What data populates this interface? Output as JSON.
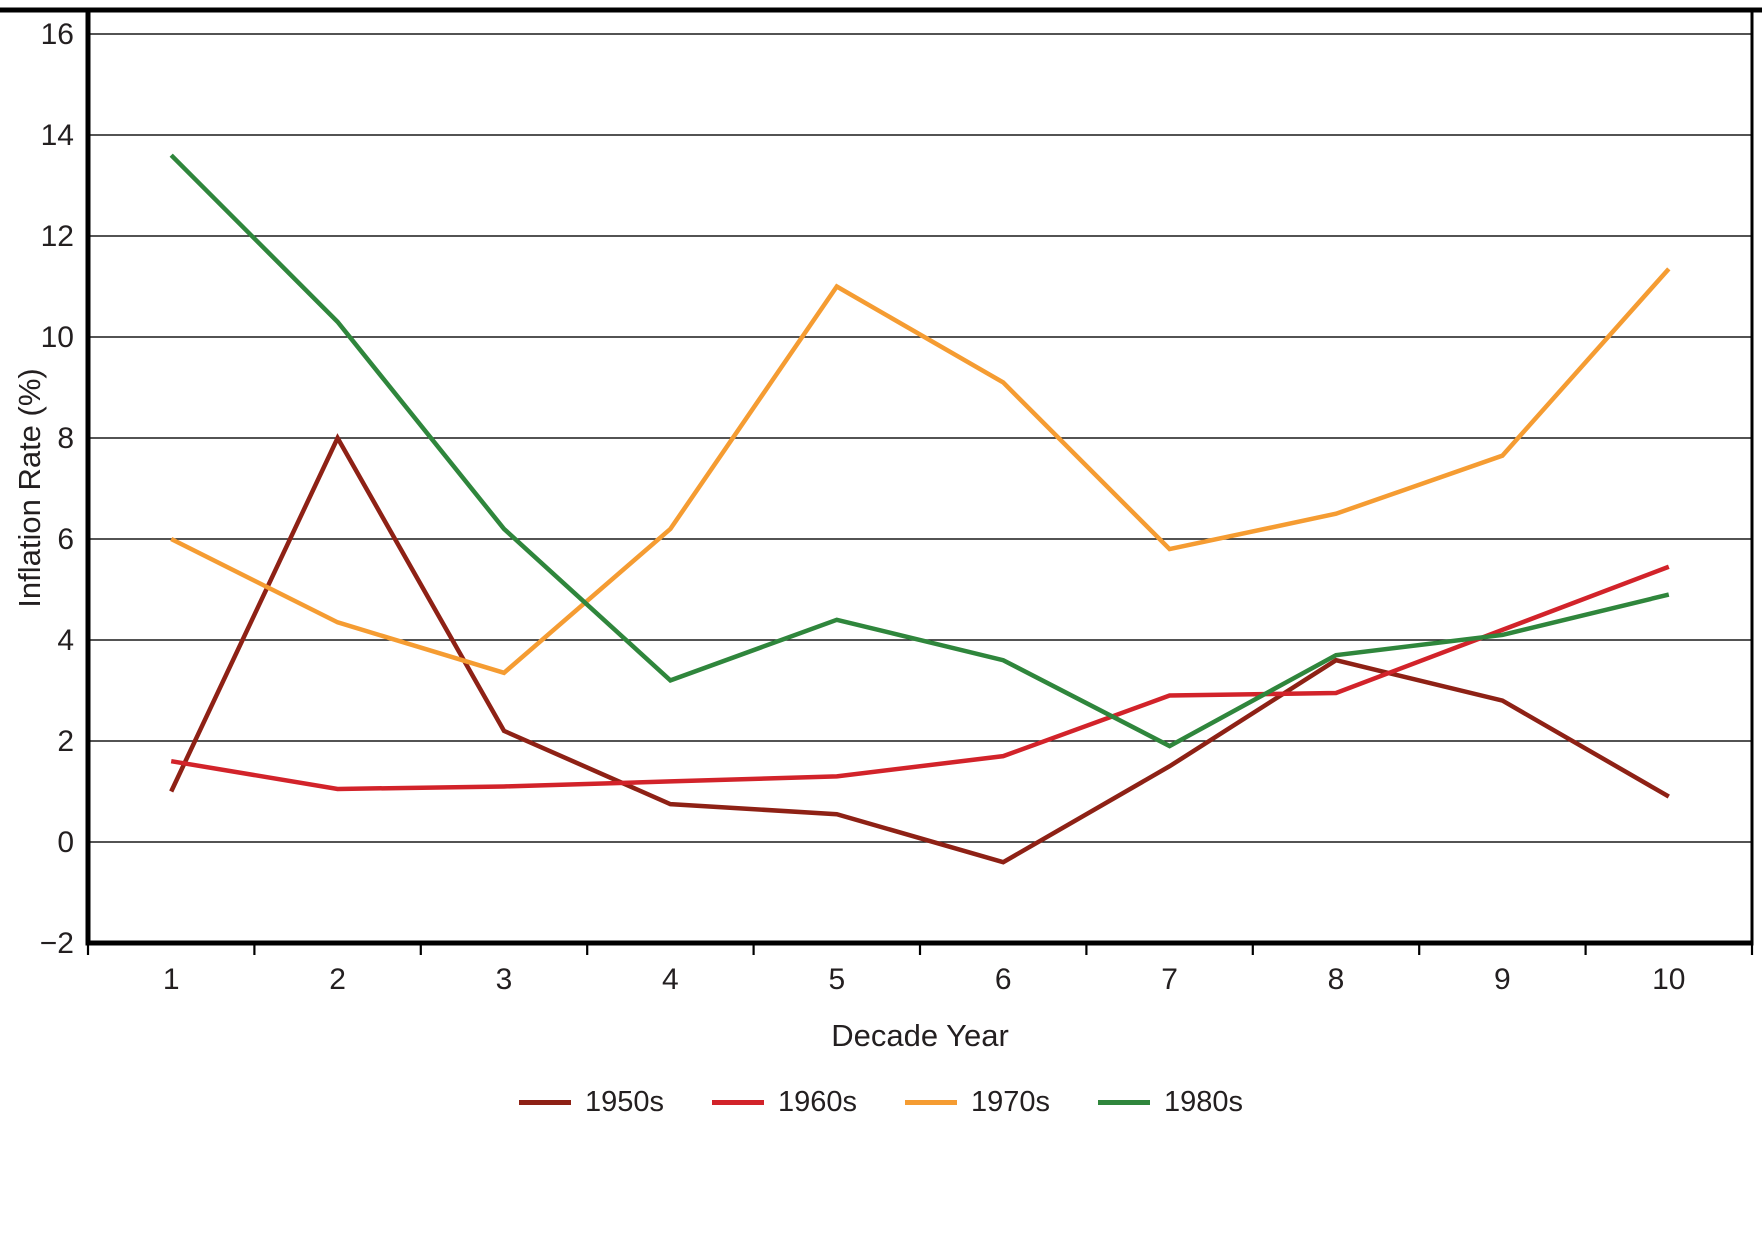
{
  "figure": {
    "background": "#ffffff",
    "text_color": "#231f20"
  },
  "chart_data": {
    "type": "line",
    "title": "",
    "xlabel": "Decade Year",
    "ylabel": "Inflation Rate (%)",
    "x": [
      1,
      2,
      3,
      4,
      5,
      6,
      7,
      8,
      9,
      10
    ],
    "x_tick_labels": [
      "1",
      "2",
      "3",
      "4",
      "5",
      "6",
      "7",
      "8",
      "9",
      "10"
    ],
    "y_ticks": [
      -2,
      0,
      2,
      4,
      6,
      8,
      10,
      12,
      14,
      16
    ],
    "y_tick_labels": [
      "−2",
      "0",
      "2",
      "4",
      "6",
      "8",
      "10",
      "12",
      "14",
      "16"
    ],
    "ylim": [
      -2,
      16
    ],
    "grid": "horizontal",
    "legend_position": "bottom",
    "series": [
      {
        "name": "1950s",
        "color": "#8E2115",
        "values": [
          1.0,
          8.0,
          2.2,
          0.75,
          0.55,
          -0.4,
          1.5,
          3.6,
          2.8,
          0.9
        ]
      },
      {
        "name": "1960s",
        "color": "#D2232A",
        "values": [
          1.6,
          1.05,
          1.1,
          1.2,
          1.3,
          1.7,
          2.9,
          2.95,
          4.2,
          5.45
        ]
      },
      {
        "name": "1970s",
        "color": "#F59C32",
        "values": [
          6.0,
          4.35,
          3.35,
          6.2,
          11.0,
          9.1,
          5.8,
          6.5,
          7.65,
          11.35
        ]
      },
      {
        "name": "1980s",
        "color": "#2F863C",
        "values": [
          13.6,
          10.3,
          6.2,
          3.2,
          4.4,
          3.6,
          1.9,
          3.7,
          4.1,
          4.9
        ]
      }
    ]
  }
}
